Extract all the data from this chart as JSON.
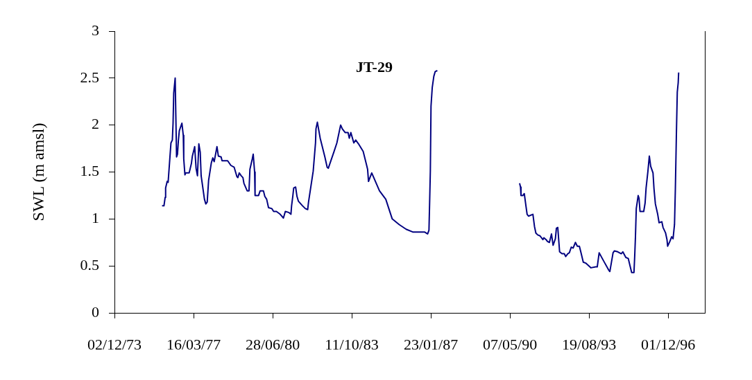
{
  "chart_data": {
    "type": "line",
    "title": "JT-29",
    "ylabel": "SWL (m amsl)",
    "color": "#000080",
    "x": [
      "1975-11-24",
      "1975-12-23",
      "1976-01-10",
      "1976-01-17",
      "1976-02-10",
      "1976-02-24",
      "1976-04-07",
      "1976-04-28",
      "1976-05-09",
      "1976-05-19",
      "1976-06-10",
      "1976-06-20",
      "1976-07-01",
      "1976-07-15",
      "1976-07-29",
      "1976-08-12",
      "1976-09-20",
      "1976-10-11",
      "1976-10-18",
      "1976-11-05",
      "1976-11-18",
      "1977-01-08",
      "1977-02-11",
      "1977-02-26",
      "1977-04-02",
      "1977-04-23",
      "1977-05-14",
      "1977-06-04",
      "1977-06-25",
      "1977-07-09",
      "1977-08-28",
      "1977-09-18",
      "1977-10-09",
      "1977-10-30",
      "1977-12-11",
      "1978-01-02",
      "1978-01-23",
      "1978-03-06",
      "1978-03-27",
      "1978-05-08",
      "1978-05-22",
      "1978-08-15",
      "1978-10-03",
      "1978-11-22",
      "1979-01-03",
      "1979-01-17",
      "1979-02-07",
      "1979-03-08",
      "1979-04-04",
      "1979-04-19",
      "1979-06-07",
      "1979-07-05",
      "1979-07-19",
      "1979-08-24",
      "1979-09-07",
      "1979-09-28",
      "1979-10-05",
      "1979-11-27",
      "1979-12-21",
      "1980-02-09",
      "1980-03-01",
      "1980-03-29",
      "1980-04-26",
      "1980-06-15",
      "1980-07-13",
      "1980-08-24",
      "1980-10-20",
      "1980-12-08",
      "1981-01-06",
      "1981-02-25",
      "1981-04-01",
      "1981-04-11",
      "1981-04-29",
      "1981-05-13",
      "1981-06-11",
      "1981-07-02",
      "1981-07-23",
      "1981-09-24",
      "1981-11-06",
      "1981-12-11",
      "1981-12-24",
      "1982-03-05",
      "1982-04-09",
      "1982-04-16",
      "1982-05-07",
      "1982-06-19",
      "1982-08-29",
      "1982-10-03",
      "1982-10-20",
      "1983-01-16",
      "1983-02-27",
      "1983-04-25",
      "1983-05-20",
      "1983-07-04",
      "1983-08-16",
      "1983-09-03",
      "1983-09-27",
      "1983-11-11",
      "1983-12-10",
      "1984-01-21",
      "1984-04-01",
      "1984-05-17",
      "1984-06-07",
      "1984-06-21",
      "1984-08-09",
      "1984-12-04",
      "1985-03-10",
      "1985-06-16",
      "1985-09-30",
      "1986-01-14",
      "1986-04-29",
      "1986-10-23",
      "1986-12-04",
      "1986-12-25",
      "1987-01-04",
      "1987-01-15",
      "1987-01-25",
      "1987-02-13",
      "1987-03-09",
      "1987-03-30",
      "1987-05-01",
      "1989-01-01",
      "1990-09-30",
      "1990-10-14",
      "1990-10-21",
      "1990-11-19",
      "1990-12-10",
      "1991-01-04",
      "1991-01-22",
      "1991-02-12",
      "1991-04-20",
      "1991-05-14",
      "1991-06-04",
      "1991-07-02",
      "1991-08-06",
      "1991-09-18",
      "1991-10-03",
      "1991-11-06",
      "1991-11-27",
      "1991-12-26",
      "1992-01-27",
      "1992-02-20",
      "1992-03-26",
      "1992-04-10",
      "1992-05-01",
      "1992-05-29",
      "1992-07-04",
      "1992-08-08",
      "1992-08-29",
      "1992-09-30",
      "1992-10-24",
      "1992-11-22",
      "1992-12-20",
      "1993-01-24",
      "1993-02-22",
      "1993-03-25",
      "1993-04-19",
      "1993-05-23",
      "1993-06-29",
      "1993-09-17",
      "1993-11-27",
      "1993-12-21",
      "1994-01-19",
      "1994-03-30",
      "1994-06-09",
      "1994-06-30",
      "1994-08-18",
      "1994-09-08",
      "1994-10-28",
      "1994-12-20",
      "1995-01-13",
      "1995-02-28",
      "1995-04-05",
      "1995-04-29",
      "1995-05-27",
      "1995-07-01",
      "1995-07-12",
      "1995-07-23",
      "1995-08-05",
      "1995-09-03",
      "1995-09-16",
      "1995-10-01",
      "1995-11-26",
      "1995-12-17",
      "1996-01-01",
      "1996-01-29",
      "1996-02-19",
      "1996-03-11",
      "1996-04-15",
      "1996-04-30",
      "1996-05-21",
      "1996-06-25",
      "1996-07-16",
      "1996-08-27",
      "1996-09-14",
      "1996-10-23",
      "1996-11-13",
      "1996-11-23",
      "1996-12-26",
      "1997-01-23",
      "1997-02-13",
      "1997-03-07",
      "1997-03-20",
      "1997-04-04",
      "1997-04-18",
      "1997-05-02",
      "1997-05-09"
    ],
    "values": [
      1.14,
      1.14,
      1.23,
      1.33,
      1.4,
      1.39,
      1.81,
      1.84,
      2.02,
      2.34,
      2.5,
      2.1,
      1.66,
      1.69,
      1.84,
      1.94,
      2.02,
      1.89,
      1.64,
      1.47,
      1.49,
      1.49,
      1.59,
      1.67,
      1.77,
      1.54,
      1.46,
      1.8,
      1.71,
      1.46,
      1.21,
      1.16,
      1.18,
      1.41,
      1.6,
      1.65,
      1.61,
      1.77,
      1.67,
      1.66,
      1.62,
      1.62,
      1.57,
      1.55,
      1.45,
      1.44,
      1.49,
      1.46,
      1.44,
      1.38,
      1.3,
      1.3,
      1.53,
      1.64,
      1.69,
      1.5,
      1.25,
      1.25,
      1.3,
      1.3,
      1.24,
      1.21,
      1.12,
      1.11,
      1.08,
      1.08,
      1.05,
      1.01,
      1.08,
      1.07,
      1.05,
      1.14,
      1.24,
      1.33,
      1.34,
      1.24,
      1.19,
      1.14,
      1.11,
      1.1,
      1.18,
      1.51,
      1.81,
      1.96,
      2.03,
      1.86,
      1.66,
      1.55,
      1.54,
      1.72,
      1.81,
      2.0,
      1.96,
      1.92,
      1.92,
      1.86,
      1.92,
      1.81,
      1.84,
      1.8,
      1.72,
      1.59,
      1.53,
      1.4,
      1.49,
      1.3,
      1.21,
      1.0,
      0.94,
      0.89,
      0.86,
      0.86,
      0.84,
      0.88,
      1.17,
      1.51,
      2.2,
      2.4,
      2.52,
      2.57,
      2.58,
      null,
      1.38,
      1.34,
      1.25,
      1.25,
      1.27,
      1.14,
      1.05,
      1.03,
      1.05,
      0.92,
      0.85,
      0.83,
      0.82,
      0.78,
      0.8,
      0.78,
      0.76,
      0.75,
      0.84,
      0.72,
      0.79,
      0.9,
      0.91,
      0.65,
      0.63,
      0.63,
      0.6,
      0.63,
      0.64,
      0.7,
      0.69,
      0.75,
      0.71,
      0.71,
      0.64,
      0.54,
      0.53,
      0.48,
      0.49,
      0.49,
      0.64,
      0.55,
      0.46,
      0.44,
      0.64,
      0.66,
      0.65,
      0.63,
      0.65,
      0.59,
      0.58,
      0.51,
      0.43,
      0.43,
      0.6,
      0.8,
      1.11,
      1.25,
      1.22,
      1.08,
      1.08,
      1.17,
      1.33,
      1.51,
      1.67,
      1.56,
      1.49,
      1.32,
      1.16,
      1.05,
      0.96,
      0.97,
      0.91,
      0.85,
      0.78,
      0.71,
      0.76,
      0.81,
      0.79,
      0.94,
      1.32,
      1.88,
      2.35,
      2.45,
      2.56
    ],
    "xlim": [
      "1973-12-02",
      "1998-06-10"
    ],
    "xticks": [
      {
        "value": "1973-12-02",
        "label": "02/12/73"
      },
      {
        "value": "1977-03-16",
        "label": "16/03/77"
      },
      {
        "value": "1980-06-28",
        "label": "28/06/80"
      },
      {
        "value": "1983-10-11",
        "label": "11/10/83"
      },
      {
        "value": "1987-01-23",
        "label": "23/01/87"
      },
      {
        "value": "1990-05-07",
        "label": "07/05/90"
      },
      {
        "value": "1993-08-19",
        "label": "19/08/93"
      },
      {
        "value": "1996-12-01",
        "label": "01/12/96"
      }
    ],
    "ylim": [
      0,
      3
    ],
    "yticks": [
      0,
      0.5,
      1,
      1.5,
      2,
      2.5,
      3
    ]
  }
}
